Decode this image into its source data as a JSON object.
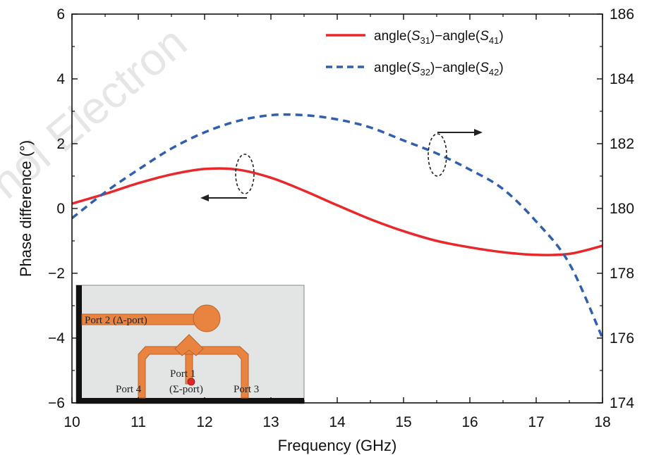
{
  "chart_data": {
    "type": "line",
    "title": "",
    "xlabel": "Frequency (GHz)",
    "ylabel": "Phase difference (°)",
    "xlim": [
      10,
      18
    ],
    "ylim": [
      -6,
      6
    ],
    "y2lim": [
      174,
      186
    ],
    "xticks": [
      "10",
      "11",
      "12",
      "13",
      "14",
      "15",
      "16",
      "17",
      "18"
    ],
    "yticks": [
      "−6",
      "−4",
      "−2",
      "0",
      "2",
      "4",
      "6"
    ],
    "y2ticks": [
      "174",
      "176",
      "178",
      "180",
      "182",
      "184",
      "186"
    ],
    "grid": false,
    "legend_position": "top-right",
    "series": [
      {
        "name": "angle(S31)−angle(S41)",
        "legend": {
          "pre": "angle(",
          "v1": "S",
          "s1": "31",
          "mid": ")−angle(",
          "v2": "S",
          "s2": "41",
          "post": ")"
        },
        "axis": "left",
        "style": "solid",
        "color": "#e8282b",
        "x": [
          10,
          10.5,
          11,
          11.5,
          12,
          12.5,
          13,
          13.5,
          14,
          14.5,
          15,
          15.5,
          16,
          16.5,
          17,
          17.5,
          18
        ],
        "y": [
          0.15,
          0.45,
          0.78,
          1.05,
          1.22,
          1.2,
          0.95,
          0.55,
          0.1,
          -0.33,
          -0.7,
          -1.0,
          -1.2,
          -1.35,
          -1.43,
          -1.4,
          -1.15
        ]
      },
      {
        "name": "angle(S32)−angle(S42)",
        "legend": {
          "pre": "angle(",
          "v1": "S",
          "s1": "32",
          "mid": ")−angle(",
          "v2": "S",
          "s2": "42",
          "post": ")"
        },
        "axis": "right",
        "style": "dashed",
        "color": "#2f5fae",
        "x": [
          10,
          10.5,
          11,
          11.5,
          12,
          12.5,
          13,
          13.5,
          14,
          14.5,
          15,
          15.5,
          16,
          16.5,
          17,
          17.5,
          18
        ],
        "y": [
          179.7,
          180.5,
          181.2,
          181.85,
          182.35,
          182.7,
          182.88,
          182.88,
          182.75,
          182.5,
          182.1,
          181.7,
          181.2,
          180.6,
          179.6,
          178.3,
          176.0
        ]
      }
    ],
    "annotations": [
      {
        "type": "ellipse-arrow",
        "target": "left",
        "x": 12.6,
        "y": 1.0
      },
      {
        "type": "ellipse-arrow",
        "target": "right",
        "x": 15.55,
        "y": 181.7
      }
    ],
    "inset": {
      "labels": {
        "port2": "Port 2 (Δ-port)",
        "port1": "Port 1",
        "sigma": "(Σ-port)",
        "port4": "Port 4",
        "port3": "Port 3"
      }
    },
    "watermark": "nol Electron",
    "colors": {
      "red": "#e8282b",
      "blue": "#2f5fae",
      "orange": "#e8843f",
      "inset_bg": "#e3e4e4"
    }
  }
}
